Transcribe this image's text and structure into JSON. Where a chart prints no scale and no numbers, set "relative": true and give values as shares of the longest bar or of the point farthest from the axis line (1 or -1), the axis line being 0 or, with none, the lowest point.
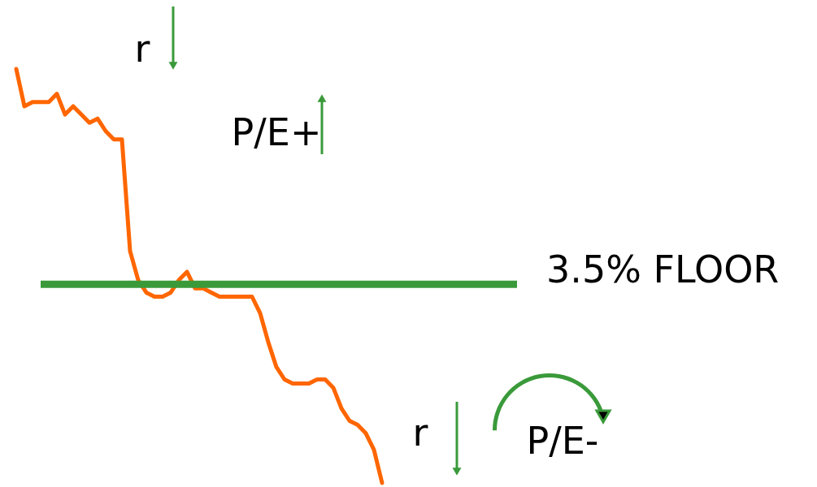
{
  "chart_data": {
    "type": "line",
    "relative": true,
    "categories": [
      null,
      null,
      null,
      null,
      null,
      null,
      null,
      null,
      null,
      null,
      null,
      null,
      null,
      null,
      null,
      null,
      null,
      null,
      null,
      null,
      null,
      null,
      null,
      null,
      null,
      null,
      null,
      null,
      null,
      null,
      null,
      null,
      null,
      null,
      null,
      null,
      null,
      null,
      null,
      null,
      null,
      null,
      null,
      null,
      null,
      null
    ],
    "series": [
      {
        "color": "#ff6600",
        "values": [
          1.0,
          0.91,
          0.92,
          0.92,
          0.92,
          0.94,
          0.89,
          0.91,
          0.89,
          0.87,
          0.88,
          0.85,
          0.83,
          0.83,
          0.56,
          0.49,
          0.46,
          0.45,
          0.45,
          0.46,
          0.49,
          0.51,
          0.47,
          0.47,
          0.46,
          0.45,
          0.45,
          0.45,
          0.45,
          0.45,
          0.41,
          0.34,
          0.28,
          0.25,
          0.24,
          0.24,
          0.24,
          0.25,
          0.25,
          0.23,
          0.18,
          0.15,
          0.14,
          0.12,
          0.08,
          0.0
        ]
      }
    ],
    "ref_lines": [
      {
        "axis": "y",
        "value": 0.48,
        "label": "3.5% FLOOR",
        "color": "#3a9a3a"
      }
    ],
    "annotations": [
      "r",
      "P/E+",
      "r",
      "P/E-"
    ]
  }
}
